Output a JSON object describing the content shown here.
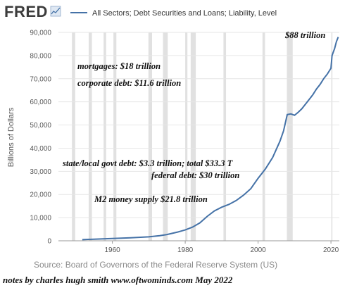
{
  "header": {
    "brand": "FRED",
    "brand_icon": "trend-chart-icon",
    "legend_label": "All Sectors; Debt Securities and Loans; Liability, Level"
  },
  "source": "Source: Board of Governors of the Federal Reserve System (US)",
  "footer_note": "notes by charles hugh smith  www.oftwominds.com    May 2022",
  "colors": {
    "line": "#4572a7",
    "recession": "#e1e1e1",
    "grid": "#e6e6e6",
    "brand_text": "#3c3c3c"
  },
  "chart_data": {
    "type": "line",
    "title": "",
    "xlabel": "",
    "ylabel": "Billions of Dollars",
    "xlim": [
      1945.2,
      2022.3
    ],
    "ylim": [
      0,
      90000
    ],
    "y_ticks": [
      0,
      10000,
      20000,
      30000,
      40000,
      50000,
      60000,
      70000,
      80000,
      90000
    ],
    "y_tick_labels": [
      "0",
      "10,000",
      "20,000",
      "30,000",
      "40,000",
      "50,000",
      "60,000",
      "70,000",
      "80,000",
      "90,000"
    ],
    "x_ticks": [
      1960,
      1980,
      2000,
      2020
    ],
    "x_tick_labels": [
      "1960",
      "1980",
      "2000",
      "2020"
    ],
    "grid": true,
    "legend": "top",
    "recessions": [
      [
        1948.9,
        1949.8
      ],
      [
        1953.5,
        1954.4
      ],
      [
        1957.6,
        1958.3
      ],
      [
        1960.3,
        1961.1
      ],
      [
        1969.9,
        1970.9
      ],
      [
        1973.9,
        1975.2
      ],
      [
        1980.0,
        1980.6
      ],
      [
        1981.5,
        1982.9
      ],
      [
        1990.5,
        1991.2
      ],
      [
        2001.2,
        2001.9
      ],
      [
        2007.9,
        2009.5
      ],
      [
        2020.1,
        2020.4
      ]
    ],
    "series": [
      {
        "name": "All Sectors; Debt Securities and Loans; Liability, Level",
        "x": [
          1951.75,
          1955,
          1960,
          1965,
          1970,
          1973,
          1975,
          1978,
          1980,
          1982,
          1984,
          1986,
          1988,
          1990,
          1992,
          1994,
          1996,
          1998,
          2000,
          2002,
          2004,
          2006,
          2007,
          2007.5,
          2008,
          2009,
          2010,
          2011,
          2012,
          2013,
          2014,
          2015,
          2016,
          2017,
          2018,
          2019,
          2020,
          2020.3,
          2021,
          2021.5,
          2022
        ],
        "y": [
          500,
          700,
          1000,
          1300,
          1700,
          2200,
          2700,
          3800,
          4700,
          5900,
          7700,
          10500,
          12900,
          14500,
          15700,
          17400,
          19700,
          22500,
          27000,
          31000,
          36000,
          43000,
          47500,
          51000,
          54500,
          54800,
          54200,
          55500,
          57000,
          59000,
          61000,
          63000,
          65500,
          67500,
          70000,
          72000,
          74500,
          80000,
          83000,
          86000,
          88000
        ]
      }
    ],
    "annotations": [
      "$88 trillion",
      "mortgages: $18 trillion",
      "corporate debt: $11.6 trillion",
      "state/local govt debt: $3.3 trillion; total $33.3 T",
      "federal debt: $30 trillion",
      "M2 money supply $21.8 trillion"
    ]
  }
}
